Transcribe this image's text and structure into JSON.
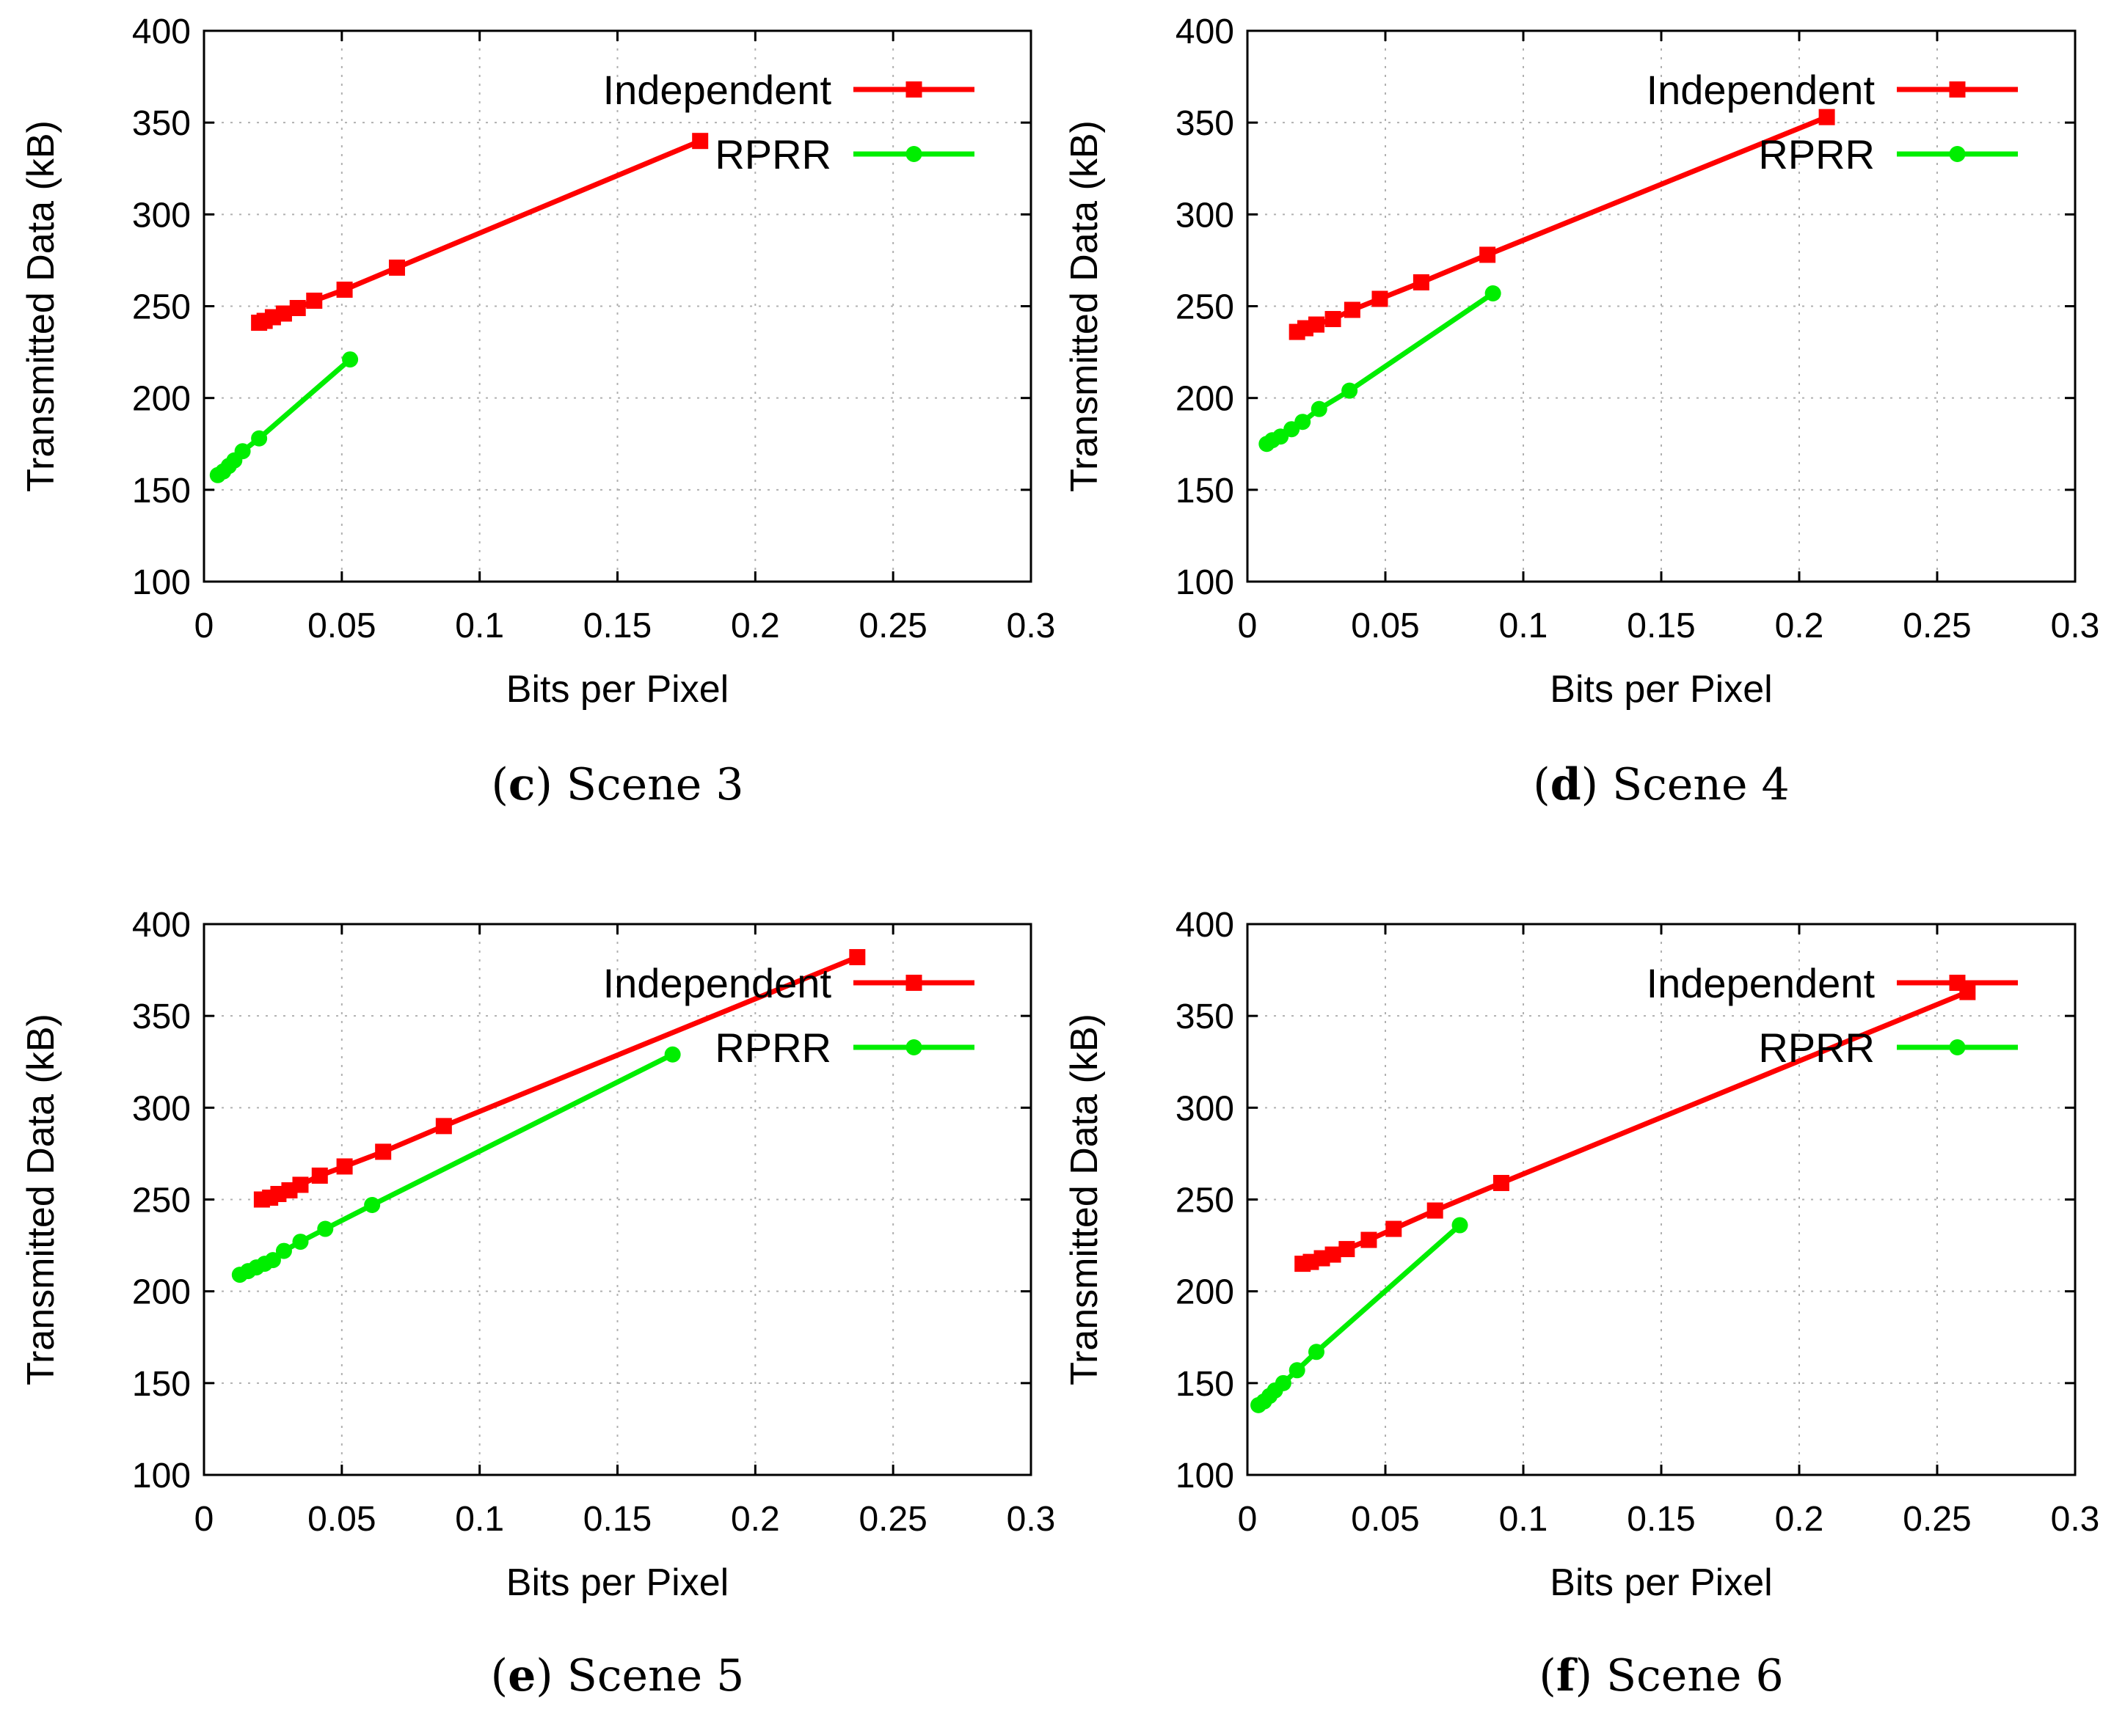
{
  "chart_data": [
    {
      "type": "line",
      "panel_letter": "c",
      "caption_text": "Scene 3",
      "xlabel": "Bits per Pixel",
      "ylabel": "Transmitted Data (kB)",
      "xlim": [
        0,
        0.3
      ],
      "ylim": [
        100,
        400
      ],
      "xticks": [
        0,
        0.05,
        0.1,
        0.15,
        0.2,
        0.25,
        0.3
      ],
      "xtick_labels": [
        "0",
        "0.05",
        "0.1",
        "0.15",
        "0.2",
        "0.25",
        "0.3"
      ],
      "yticks": [
        100,
        150,
        200,
        250,
        300,
        350,
        400
      ],
      "ytick_labels": [
        "100",
        "150",
        "200",
        "250",
        "300",
        "350",
        "400"
      ],
      "grid": true,
      "legend_position": "top-right",
      "series": [
        {
          "name": "Independent",
          "color": "#ff0000",
          "marker": "square",
          "x": [
            0.02,
            0.022,
            0.025,
            0.029,
            0.034,
            0.04,
            0.051,
            0.07,
            0.18
          ],
          "y": [
            241,
            242,
            244,
            246,
            249,
            253,
            259,
            271,
            340
          ]
        },
        {
          "name": "RPRR",
          "color": "#00ee00",
          "marker": "circle",
          "x": [
            0.005,
            0.007,
            0.009,
            0.011,
            0.014,
            0.02,
            0.053
          ],
          "y": [
            158,
            160,
            163,
            166,
            171,
            178,
            221
          ]
        }
      ]
    },
    {
      "type": "line",
      "panel_letter": "d",
      "caption_text": "Scene 4",
      "xlabel": "Bits per Pixel",
      "ylabel": "Transmitted Data (kB)",
      "xlim": [
        0,
        0.3
      ],
      "ylim": [
        100,
        400
      ],
      "xticks": [
        0,
        0.05,
        0.1,
        0.15,
        0.2,
        0.25,
        0.3
      ],
      "xtick_labels": [
        "0",
        "0.05",
        "0.1",
        "0.15",
        "0.2",
        "0.25",
        "0.3"
      ],
      "yticks": [
        100,
        150,
        200,
        250,
        300,
        350,
        400
      ],
      "ytick_labels": [
        "100",
        "150",
        "200",
        "250",
        "300",
        "350",
        "400"
      ],
      "grid": true,
      "legend_position": "top-right",
      "series": [
        {
          "name": "Independent",
          "color": "#ff0000",
          "marker": "square",
          "x": [
            0.018,
            0.021,
            0.025,
            0.031,
            0.038,
            0.048,
            0.063,
            0.087,
            0.21
          ],
          "y": [
            236,
            238,
            240,
            243,
            248,
            254,
            263,
            278,
            353
          ]
        },
        {
          "name": "RPRR",
          "color": "#00ee00",
          "marker": "circle",
          "x": [
            0.007,
            0.009,
            0.012,
            0.016,
            0.02,
            0.026,
            0.037,
            0.089
          ],
          "y": [
            175,
            177,
            179,
            183,
            187,
            194,
            204,
            257
          ]
        }
      ]
    },
    {
      "type": "line",
      "panel_letter": "e",
      "caption_text": "Scene 5",
      "xlabel": "Bits per Pixel",
      "ylabel": "Transmitted Data (kB)",
      "xlim": [
        0,
        0.3
      ],
      "ylim": [
        100,
        400
      ],
      "xticks": [
        0,
        0.05,
        0.1,
        0.15,
        0.2,
        0.25,
        0.3
      ],
      "xtick_labels": [
        "0",
        "0.05",
        "0.1",
        "0.15",
        "0.2",
        "0.25",
        "0.3"
      ],
      "yticks": [
        100,
        150,
        200,
        250,
        300,
        350,
        400
      ],
      "ytick_labels": [
        "100",
        "150",
        "200",
        "250",
        "300",
        "350",
        "400"
      ],
      "grid": true,
      "legend_position": "top-right",
      "series": [
        {
          "name": "Independent",
          "color": "#ff0000",
          "marker": "square",
          "x": [
            0.021,
            0.024,
            0.027,
            0.031,
            0.035,
            0.042,
            0.051,
            0.065,
            0.087,
            0.237
          ],
          "y": [
            250,
            251,
            253,
            255,
            258,
            263,
            268,
            276,
            290,
            382
          ]
        },
        {
          "name": "RPRR",
          "color": "#00ee00",
          "marker": "circle",
          "x": [
            0.013,
            0.016,
            0.019,
            0.022,
            0.025,
            0.029,
            0.035,
            0.044,
            0.061,
            0.17
          ],
          "y": [
            209,
            211,
            213,
            215,
            217,
            222,
            227,
            234,
            247,
            329
          ]
        }
      ]
    },
    {
      "type": "line",
      "panel_letter": "f",
      "caption_text": "Scene 6",
      "xlabel": "Bits per Pixel",
      "ylabel": "Transmitted Data (kB)",
      "xlim": [
        0,
        0.3
      ],
      "ylim": [
        100,
        400
      ],
      "xticks": [
        0,
        0.05,
        0.1,
        0.15,
        0.2,
        0.25,
        0.3
      ],
      "xtick_labels": [
        "0",
        "0.05",
        "0.1",
        "0.15",
        "0.2",
        "0.25",
        "0.3"
      ],
      "yticks": [
        100,
        150,
        200,
        250,
        300,
        350,
        400
      ],
      "ytick_labels": [
        "100",
        "150",
        "200",
        "250",
        "300",
        "350",
        "400"
      ],
      "grid": true,
      "legend_position": "top-right",
      "series": [
        {
          "name": "Independent",
          "color": "#ff0000",
          "marker": "square",
          "x": [
            0.02,
            0.023,
            0.027,
            0.031,
            0.036,
            0.044,
            0.053,
            0.068,
            0.092,
            0.261
          ],
          "y": [
            215,
            216,
            218,
            220,
            223,
            228,
            234,
            244,
            259,
            363
          ]
        },
        {
          "name": "RPRR",
          "color": "#00ee00",
          "marker": "circle",
          "x": [
            0.004,
            0.006,
            0.008,
            0.01,
            0.013,
            0.018,
            0.025,
            0.077
          ],
          "y": [
            138,
            140,
            143,
            146,
            150,
            157,
            167,
            236
          ]
        }
      ]
    }
  ]
}
